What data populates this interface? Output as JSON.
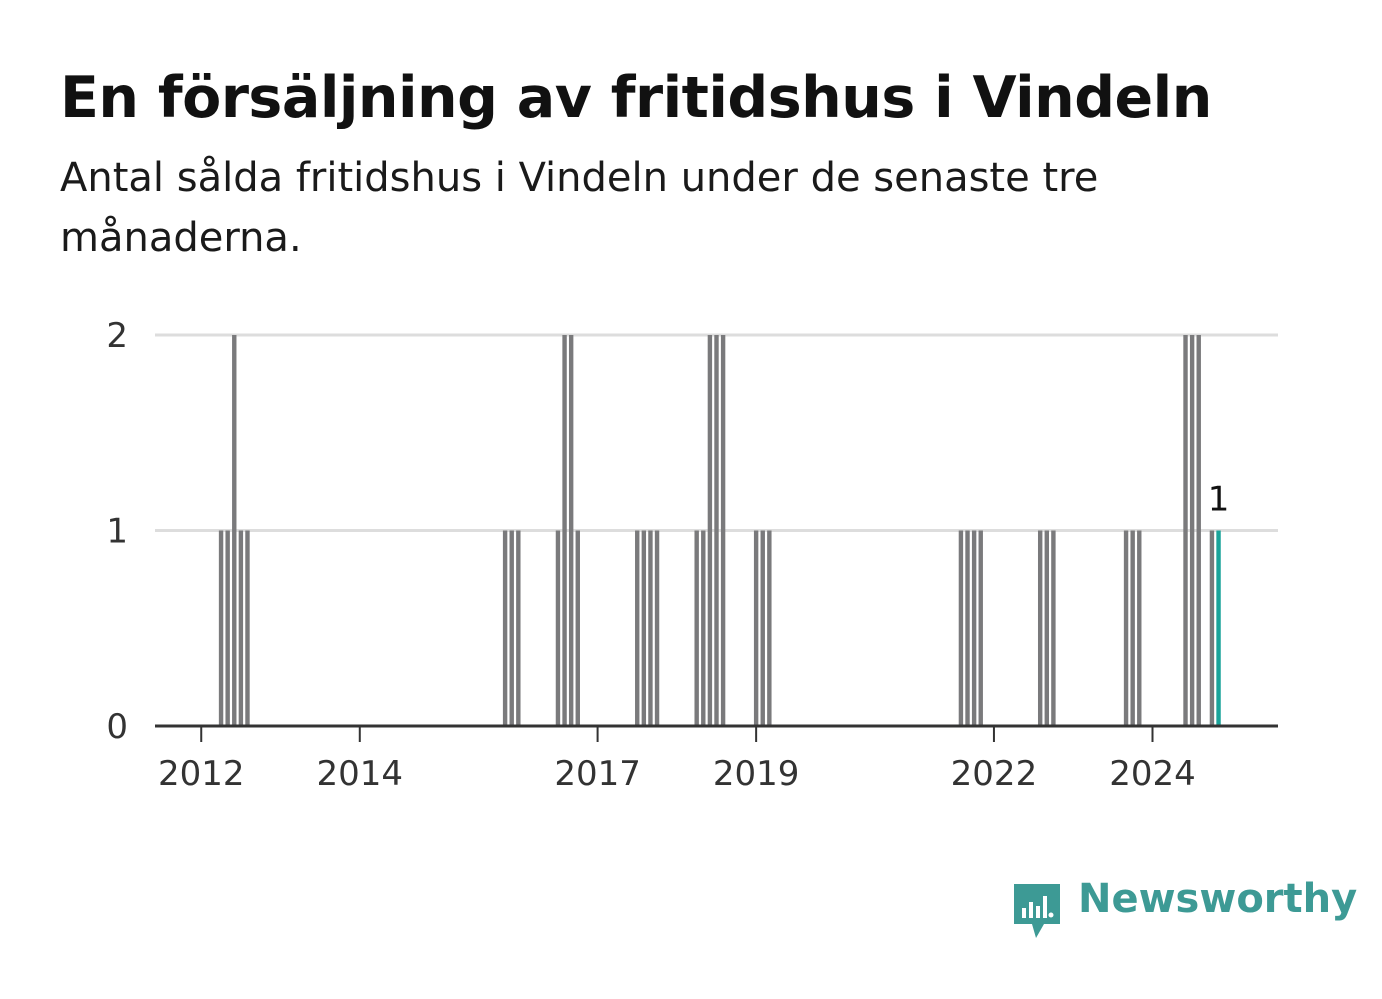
{
  "header": {
    "title": "En försäljning av fritidshus i Vindeln",
    "subtitle": "Antal sålda fritidshus i Vindeln under de senaste tre månaderna."
  },
  "brand": {
    "name": "Newsworthy",
    "icon": "newsworthy-logo-icon",
    "color": "#3d9a95"
  },
  "colors": {
    "bar": "#7a7a7c",
    "highlight": "#1aa39a",
    "grid": "#dddddd",
    "axis": "#333333"
  },
  "chart_data": {
    "type": "bar",
    "x_axis_type": "date",
    "ylim": [
      0,
      2
    ],
    "y_ticks": [
      "0",
      "1",
      "2"
    ],
    "x_ticks": [
      "2012",
      "2014",
      "2017",
      "2019",
      "2022",
      "2024"
    ],
    "x_range": [
      "2011-06",
      "2025-08"
    ],
    "grid": "horizontal",
    "highlight_label": "1",
    "series": [
      {
        "values": [
          [
            "2012-04",
            1
          ],
          [
            "2012-05",
            1
          ],
          [
            "2012-06",
            2
          ],
          [
            "2012-07",
            1
          ],
          [
            "2012-08",
            1
          ],
          [
            "2015-11",
            1
          ],
          [
            "2015-12",
            1
          ],
          [
            "2016-01",
            1
          ],
          [
            "2016-07",
            1
          ],
          [
            "2016-08",
            2
          ],
          [
            "2016-09",
            2
          ],
          [
            "2016-10",
            1
          ],
          [
            "2017-07",
            1
          ],
          [
            "2017-08",
            1
          ],
          [
            "2017-09",
            1
          ],
          [
            "2017-10",
            1
          ],
          [
            "2018-04",
            1
          ],
          [
            "2018-05",
            1
          ],
          [
            "2018-06",
            2
          ],
          [
            "2018-07",
            2
          ],
          [
            "2018-08",
            2
          ],
          [
            "2019-01",
            1
          ],
          [
            "2019-02",
            1
          ],
          [
            "2019-03",
            1
          ],
          [
            "2021-08",
            1
          ],
          [
            "2021-09",
            1
          ],
          [
            "2021-10",
            1
          ],
          [
            "2021-11",
            1
          ],
          [
            "2022-08",
            1
          ],
          [
            "2022-09",
            1
          ],
          [
            "2022-10",
            1
          ],
          [
            "2023-09",
            1
          ],
          [
            "2023-10",
            1
          ],
          [
            "2023-11",
            1
          ],
          [
            "2024-06",
            2
          ],
          [
            "2024-07",
            2
          ],
          [
            "2024-08",
            2
          ],
          [
            "2024-10",
            1
          ],
          [
            "2024-11",
            1,
            "highlight"
          ]
        ]
      }
    ]
  }
}
